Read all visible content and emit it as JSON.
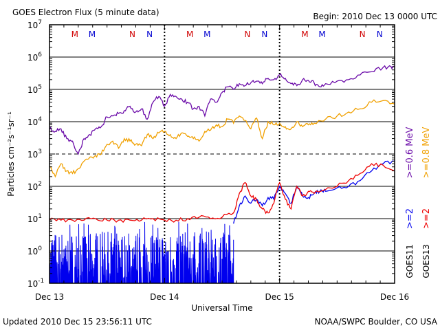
{
  "chart_data": {
    "type": "line",
    "title": "GOES Electron Flux (5 minute data)",
    "begin_label": "Begin: 2010 Dec 13 0000 UTC",
    "xlabel": "Universal Time",
    "ylabel": "Particles cm⁻²s⁻¹sr⁻¹",
    "y_scale": "log",
    "ylim": [
      0.1,
      10000000
    ],
    "y_ticks": [
      {
        "base": "10",
        "exp": "-1",
        "value": 0.1
      },
      {
        "base": "10",
        "exp": "0",
        "value": 1
      },
      {
        "base": "10",
        "exp": "1",
        "value": 10
      },
      {
        "base": "10",
        "exp": "2",
        "value": 100
      },
      {
        "base": "10",
        "exp": "3",
        "value": 1000
      },
      {
        "base": "10",
        "exp": "4",
        "value": 10000
      },
      {
        "base": "10",
        "exp": "5",
        "value": 100000
      },
      {
        "base": "10",
        "exp": "6",
        "value": 1000000
      },
      {
        "base": "10",
        "exp": "7",
        "value": 10000000
      }
    ],
    "x_ticks": [
      {
        "label": "Dec 13",
        "day": 0
      },
      {
        "label": "Dec 14",
        "day": 1
      },
      {
        "label": "Dec 15",
        "day": 2
      },
      {
        "label": "Dec 16",
        "day": 3
      }
    ],
    "xlim_days": [
      0,
      3
    ],
    "grid": true,
    "markers": [
      {
        "label": "M",
        "color": "#d00000",
        "day": 0.22
      },
      {
        "label": "M",
        "color": "#0000d0",
        "day": 0.37
      },
      {
        "label": "N",
        "color": "#d00000",
        "day": 0.72
      },
      {
        "label": "N",
        "color": "#0000d0",
        "day": 0.87
      },
      {
        "label": "M",
        "color": "#d00000",
        "day": 1.22
      },
      {
        "label": "M",
        "color": "#0000d0",
        "day": 1.37
      },
      {
        "label": "N",
        "color": "#d00000",
        "day": 1.72
      },
      {
        "label": "N",
        "color": "#0000d0",
        "day": 1.87
      },
      {
        "label": "M",
        "color": "#d00000",
        "day": 2.22
      },
      {
        "label": "M",
        "color": "#0000d0",
        "day": 2.37
      },
      {
        "label": "N",
        "color": "#d00000",
        "day": 2.72
      },
      {
        "label": "N",
        "color": "#0000d0",
        "day": 2.87
      }
    ],
    "legend": {
      "groups": [
        {
          "satellite": "GOES11",
          "entries": [
            {
              "text": ">=0.6  MeV",
              "color": "#6a0aa8"
            },
            {
              "text": ">=2",
              "color": "#0000ee"
            }
          ]
        },
        {
          "satellite": "GOES13",
          "entries": [
            {
              "text": ">=0.8  MeV",
              "color": "#f0a000"
            },
            {
              "text": ">=2",
              "color": "#ee0000"
            }
          ]
        }
      ]
    },
    "series": [
      {
        "name": "GOES11 >=0.6 MeV",
        "color": "#6a0aa8",
        "days": [
          0,
          0.05,
          0.1,
          0.15,
          0.2,
          0.25,
          0.3,
          0.35,
          0.4,
          0.45,
          0.5,
          0.55,
          0.6,
          0.65,
          0.7,
          0.75,
          0.8,
          0.85,
          0.9,
          0.95,
          1.0,
          1.05,
          1.1,
          1.15,
          1.2,
          1.25,
          1.3,
          1.35,
          1.4,
          1.45,
          1.5,
          1.55,
          1.6,
          1.65,
          1.7,
          1.75,
          1.8,
          1.85,
          1.9,
          1.95,
          2.0,
          2.05,
          2.1,
          2.15,
          2.2,
          2.25,
          2.3,
          2.35,
          2.4,
          2.5,
          2.6,
          2.7,
          2.8,
          2.9,
          2.97,
          3.0
        ],
        "values": [
          6000,
          5000,
          6000,
          3000,
          2500,
          1000,
          3000,
          4000,
          6000,
          7000,
          14000,
          15000,
          18000,
          22000,
          30000,
          20000,
          25000,
          12000,
          40000,
          60000,
          30000,
          70000,
          60000,
          50000,
          40000,
          25000,
          30000,
          15000,
          50000,
          40000,
          80000,
          120000,
          100000,
          150000,
          130000,
          160000,
          180000,
          150000,
          220000,
          200000,
          280000,
          220000,
          150000,
          130000,
          200000,
          190000,
          160000,
          120000,
          150000,
          180000,
          200000,
          280000,
          350000,
          480000,
          500000,
          490000
        ]
      },
      {
        "name": "GOES13 >=0.8 MeV",
        "color": "#f0a000",
        "days": [
          0,
          0.05,
          0.1,
          0.15,
          0.2,
          0.25,
          0.3,
          0.35,
          0.4,
          0.45,
          0.5,
          0.55,
          0.6,
          0.65,
          0.7,
          0.75,
          0.8,
          0.85,
          0.9,
          0.95,
          1.0,
          1.05,
          1.1,
          1.15,
          1.2,
          1.25,
          1.3,
          1.35,
          1.4,
          1.45,
          1.5,
          1.55,
          1.6,
          1.65,
          1.7,
          1.75,
          1.8,
          1.85,
          1.9,
          1.95,
          2.0,
          2.05,
          2.1,
          2.15,
          2.2,
          2.25,
          2.3,
          2.4,
          2.5,
          2.6,
          2.7,
          2.8,
          2.9,
          3.0
        ],
        "values": [
          400,
          200,
          500,
          300,
          250,
          350,
          600,
          800,
          900,
          1000,
          2000,
          2500,
          1500,
          3000,
          2500,
          2000,
          1800,
          4000,
          3000,
          4500,
          5000,
          4000,
          3000,
          4500,
          3500,
          3000,
          2500,
          5000,
          5500,
          8000,
          7000,
          12000,
          9000,
          15000,
          11000,
          6000,
          13000,
          3000,
          10000,
          8000,
          9000,
          7000,
          6000,
          10000,
          7000,
          8000,
          9000,
          12000,
          15000,
          20000,
          25000,
          40000,
          45000,
          35000
        ]
      },
      {
        "name": "GOES11 >=2",
        "color": "#0000ee",
        "days": [
          1.6,
          1.65,
          1.7,
          1.75,
          1.8,
          1.85,
          1.9,
          1.95,
          2.0,
          2.05,
          2.1,
          2.15,
          2.2,
          2.25,
          2.3,
          2.35,
          2.4,
          2.5,
          2.6,
          2.7,
          2.8,
          2.9,
          3.0
        ],
        "values": [
          7,
          25,
          50,
          30,
          40,
          25,
          45,
          40,
          100,
          60,
          30,
          100,
          50,
          45,
          60,
          70,
          70,
          90,
          100,
          150,
          300,
          500,
          600
        ]
      },
      {
        "name": "GOES13 >=2",
        "color": "#ee0000",
        "days": [
          0,
          0.1,
          0.2,
          0.3,
          0.4,
          0.5,
          0.6,
          0.7,
          0.8,
          0.9,
          1.0,
          1.1,
          1.2,
          1.3,
          1.4,
          1.5,
          1.6,
          1.65,
          1.7,
          1.75,
          1.8,
          1.85,
          1.9,
          1.95,
          2.0,
          2.05,
          2.1,
          2.15,
          2.2,
          2.25,
          2.3,
          2.4,
          2.5,
          2.6,
          2.7,
          2.8,
          2.9,
          3.0
        ],
        "values": [
          9,
          9,
          9,
          9,
          10,
          9,
          9,
          9,
          9,
          10,
          9,
          9,
          10,
          11,
          10,
          11,
          15,
          60,
          130,
          50,
          40,
          20,
          15,
          30,
          130,
          40,
          20,
          100,
          50,
          70,
          60,
          80,
          100,
          150,
          250,
          500,
          450,
          300
        ]
      }
    ],
    "goes11_2mev_noise": {
      "color": "#0000ee",
      "day_range": [
        0,
        1.6
      ],
      "floor": 0.1,
      "typical_peak": 4,
      "max_peak": 8
    }
  },
  "footer": {
    "updated": "Updated 2010 Dec 15 23:56:11 UTC",
    "credit": "NOAA/SWPC Boulder, CO USA"
  }
}
